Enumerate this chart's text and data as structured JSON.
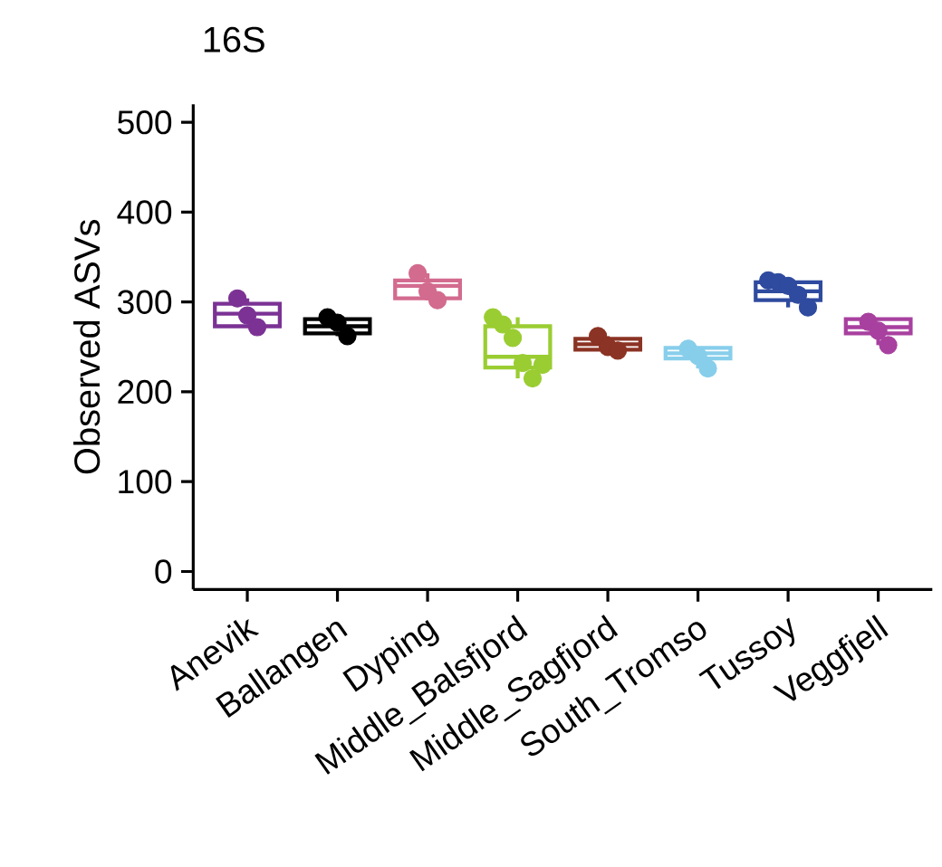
{
  "chart_data": {
    "type": "box",
    "title": "16S",
    "ylabel": "Observed ASVs",
    "categories": [
      "Anevik",
      "Ballangen",
      "Dyping",
      "Middle_Balsfjord",
      "Middle_Sagfjord",
      "South_Tromso",
      "Tussoy",
      "Veggfjell"
    ],
    "ylim": [
      -20,
      520
    ],
    "yticks": [
      0,
      100,
      200,
      300,
      400,
      500
    ],
    "series": [
      {
        "colors": [
          "#7b3294",
          "#000000",
          "#d36b8f",
          "#9acd32",
          "#8b3324",
          "#87ceeb",
          "#2f4b9f",
          "#a8409f"
        ],
        "boxes": [
          {
            "low": 272,
            "q1": 273,
            "median": 287,
            "q3": 298,
            "high": 304
          },
          {
            "low": 262,
            "q1": 265,
            "median": 273,
            "q3": 281,
            "high": 283
          },
          {
            "low": 302,
            "q1": 304,
            "median": 318,
            "q3": 324,
            "high": 332
          },
          {
            "low": 215,
            "q1": 227,
            "median": 239,
            "q3": 273,
            "high": 283
          },
          {
            "low": 246,
            "q1": 247,
            "median": 253,
            "q3": 259,
            "high": 262
          },
          {
            "low": 226,
            "q1": 237,
            "median": 243,
            "q3": 249,
            "high": 249
          },
          {
            "low": 294,
            "q1": 302,
            "median": 312,
            "q3": 322,
            "high": 324
          },
          {
            "low": 252,
            "q1": 265,
            "median": 272,
            "q3": 281,
            "high": 281
          }
        ]
      },
      {
        "type": "scatter",
        "marker": "circle",
        "x": [
          "Anevik",
          "Anevik",
          "Anevik",
          "Ballangen",
          "Ballangen",
          "Ballangen",
          "Dyping",
          "Dyping",
          "Dyping",
          "Middle_Balsfjord",
          "Middle_Balsfjord",
          "Middle_Balsfjord",
          "Middle_Balsfjord",
          "Middle_Balsfjord",
          "Middle_Balsfjord",
          "Middle_Sagfjord",
          "Middle_Sagfjord",
          "Middle_Sagfjord",
          "South_Tromso",
          "South_Tromso",
          "South_Tromso",
          "Tussoy",
          "Tussoy",
          "Tussoy",
          "Tussoy",
          "Tussoy",
          "Veggfjell",
          "Veggfjell",
          "Veggfjell"
        ],
        "values": [
          304,
          285,
          272,
          283,
          277,
          262,
          332,
          312,
          302,
          283,
          275,
          260,
          232,
          215,
          230,
          262,
          250,
          246,
          248,
          240,
          226,
          324,
          322,
          318,
          308,
          294,
          278,
          268,
          252
        ],
        "colors": [
          "#7b3294",
          "#7b3294",
          "#7b3294",
          "#000000",
          "#000000",
          "#000000",
          "#d36b8f",
          "#d36b8f",
          "#d36b8f",
          "#9acd32",
          "#9acd32",
          "#9acd32",
          "#9acd32",
          "#9acd32",
          "#9acd32",
          "#8b3324",
          "#8b3324",
          "#8b3324",
          "#87ceeb",
          "#87ceeb",
          "#87ceeb",
          "#2f4b9f",
          "#2f4b9f",
          "#2f4b9f",
          "#2f4b9f",
          "#2f4b9f",
          "#a8409f",
          "#a8409f",
          "#a8409f"
        ]
      }
    ]
  }
}
